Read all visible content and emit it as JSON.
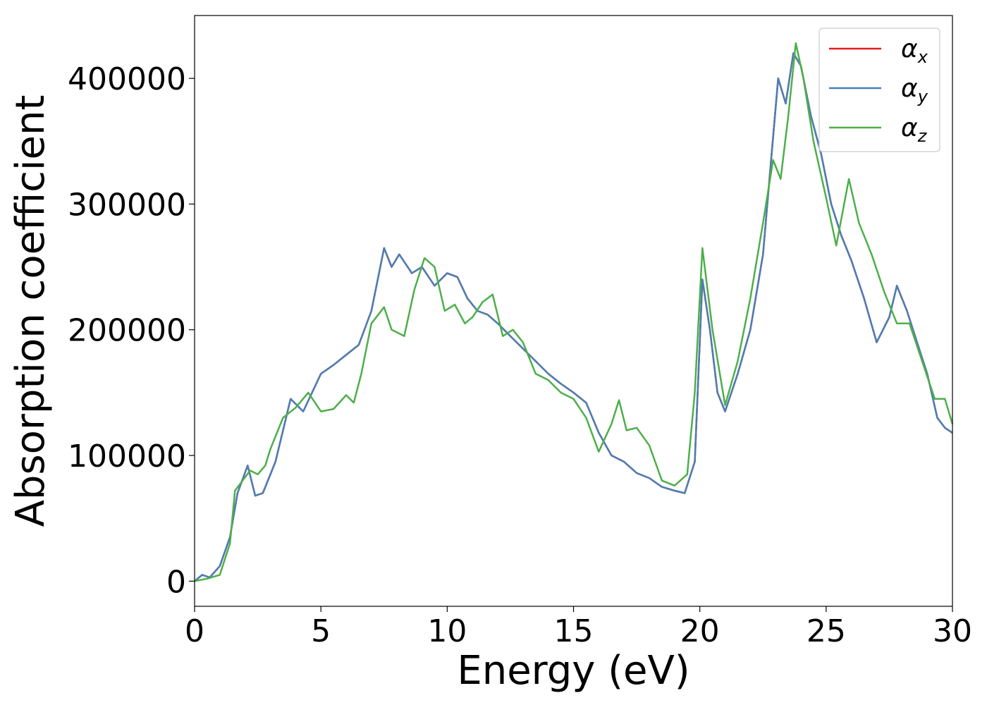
{
  "chart_data": {
    "type": "line",
    "xlabel": "Energy (eV)",
    "ylabel": "Absorption coefficient",
    "xlim": [
      0,
      30
    ],
    "ylim": [
      -20000,
      450000
    ],
    "xticks": [
      0,
      5,
      10,
      15,
      20,
      25,
      30
    ],
    "xtick_labels": [
      "0",
      "5",
      "10",
      "15",
      "20",
      "25",
      "30"
    ],
    "yticks": [
      0,
      100000,
      200000,
      300000,
      400000
    ],
    "ytick_labels": [
      "0",
      "100000",
      "200000",
      "300000",
      "400000"
    ],
    "legend_placement": "top-right",
    "grid": false,
    "series": [
      {
        "name": "α",
        "subscript": "x",
        "color": "#e41a1c",
        "x": [
          0,
          0.3,
          0.6,
          1.0,
          1.4,
          1.7,
          2.1,
          2.4,
          2.7,
          3.2,
          3.8,
          4.3,
          5.0,
          5.5,
          6.0,
          6.5,
          7.0,
          7.5,
          7.8,
          8.1,
          8.6,
          9.0,
          9.5,
          10.0,
          10.4,
          10.8,
          11.2,
          11.6,
          12.0,
          12.5,
          13.0,
          13.5,
          14.0,
          14.5,
          15.0,
          15.5,
          16.0,
          16.5,
          17.0,
          17.5,
          18.0,
          18.5,
          19.0,
          19.4,
          19.8,
          20.1,
          20.4,
          20.7,
          21.0,
          21.5,
          22.0,
          22.5,
          22.8,
          23.1,
          23.4,
          23.7,
          24.0,
          24.4,
          24.8,
          25.2,
          25.6,
          26.0,
          26.5,
          27.0,
          27.5,
          27.8,
          28.2,
          28.6,
          29.0,
          29.4,
          29.7,
          30.0
        ],
        "y": [
          0,
          5000,
          3000,
          12000,
          35000,
          70000,
          92000,
          68000,
          70000,
          95000,
          145000,
          135000,
          165000,
          172000,
          180000,
          188000,
          215000,
          265000,
          250000,
          260000,
          245000,
          250000,
          235000,
          245000,
          242000,
          225000,
          215000,
          212000,
          205000,
          195000,
          185000,
          175000,
          165000,
          157000,
          150000,
          142000,
          118000,
          100000,
          95000,
          86000,
          82000,
          75000,
          72000,
          70000,
          95000,
          240000,
          200000,
          150000,
          135000,
          165000,
          200000,
          260000,
          330000,
          400000,
          380000,
          420000,
          410000,
          370000,
          340000,
          300000,
          275000,
          255000,
          225000,
          190000,
          210000,
          235000,
          215000,
          190000,
          165000,
          130000,
          122000,
          118000
        ]
      },
      {
        "name": "α",
        "subscript": "y",
        "color": "#4a7fb5",
        "x": [
          0,
          0.3,
          0.6,
          1.0,
          1.4,
          1.7,
          2.1,
          2.4,
          2.7,
          3.2,
          3.8,
          4.3,
          5.0,
          5.5,
          6.0,
          6.5,
          7.0,
          7.5,
          7.8,
          8.1,
          8.6,
          9.0,
          9.5,
          10.0,
          10.4,
          10.8,
          11.2,
          11.6,
          12.0,
          12.5,
          13.0,
          13.5,
          14.0,
          14.5,
          15.0,
          15.5,
          16.0,
          16.5,
          17.0,
          17.5,
          18.0,
          18.5,
          19.0,
          19.4,
          19.8,
          20.1,
          20.4,
          20.7,
          21.0,
          21.5,
          22.0,
          22.5,
          22.8,
          23.1,
          23.4,
          23.7,
          24.0,
          24.4,
          24.8,
          25.2,
          25.6,
          26.0,
          26.5,
          27.0,
          27.5,
          27.8,
          28.2,
          28.6,
          29.0,
          29.4,
          29.7,
          30.0
        ],
        "y": [
          0,
          5000,
          3000,
          12000,
          35000,
          70000,
          92000,
          68000,
          70000,
          95000,
          145000,
          135000,
          165000,
          172000,
          180000,
          188000,
          215000,
          265000,
          250000,
          260000,
          245000,
          250000,
          235000,
          245000,
          242000,
          225000,
          215000,
          212000,
          205000,
          195000,
          185000,
          175000,
          165000,
          157000,
          150000,
          142000,
          118000,
          100000,
          95000,
          86000,
          82000,
          75000,
          72000,
          70000,
          95000,
          240000,
          200000,
          150000,
          135000,
          165000,
          200000,
          260000,
          330000,
          400000,
          380000,
          420000,
          410000,
          370000,
          340000,
          300000,
          275000,
          255000,
          225000,
          190000,
          210000,
          235000,
          215000,
          190000,
          165000,
          130000,
          122000,
          118000
        ]
      },
      {
        "name": "α",
        "subscript": "z",
        "color": "#4daf4a",
        "x": [
          0,
          0.5,
          1.0,
          1.4,
          1.6,
          1.9,
          2.2,
          2.5,
          2.8,
          3.0,
          3.5,
          4.0,
          4.5,
          5.0,
          5.5,
          6.0,
          6.3,
          6.6,
          7.0,
          7.5,
          7.8,
          8.0,
          8.3,
          8.7,
          9.1,
          9.5,
          9.9,
          10.3,
          10.7,
          11.0,
          11.4,
          11.8,
          12.2,
          12.6,
          13.0,
          13.5,
          14.0,
          14.5,
          15.0,
          15.5,
          16.0,
          16.5,
          16.8,
          17.1,
          17.5,
          18.0,
          18.5,
          19.0,
          19.5,
          19.8,
          20.1,
          20.5,
          21.0,
          21.5,
          22.0,
          22.5,
          22.9,
          23.2,
          23.5,
          23.8,
          24.1,
          24.5,
          25.0,
          25.4,
          25.9,
          26.3,
          26.8,
          27.3,
          27.8,
          28.3,
          28.8,
          29.3,
          29.7,
          30.0
        ],
        "y": [
          0,
          2000,
          5000,
          30000,
          72000,
          80000,
          88000,
          85000,
          92000,
          105000,
          130000,
          138000,
          150000,
          135000,
          137000,
          148000,
          142000,
          165000,
          205000,
          218000,
          200000,
          198000,
          195000,
          232000,
          257000,
          250000,
          215000,
          220000,
          205000,
          210000,
          222000,
          228000,
          195000,
          200000,
          190000,
          165000,
          160000,
          150000,
          145000,
          130000,
          103000,
          125000,
          144000,
          120000,
          122000,
          108000,
          80000,
          76000,
          85000,
          150000,
          265000,
          200000,
          140000,
          175000,
          225000,
          285000,
          335000,
          320000,
          370000,
          428000,
          400000,
          350000,
          305000,
          267000,
          320000,
          285000,
          260000,
          230000,
          205000,
          205000,
          175000,
          145000,
          145000,
          125000
        ]
      }
    ]
  },
  "legend": {
    "entries": [
      {
        "name": "α",
        "subscript": "x",
        "color": "#e41a1c"
      },
      {
        "name": "α",
        "subscript": "y",
        "color": "#4a7fb5"
      },
      {
        "name": "α",
        "subscript": "z",
        "color": "#4daf4a"
      }
    ]
  }
}
